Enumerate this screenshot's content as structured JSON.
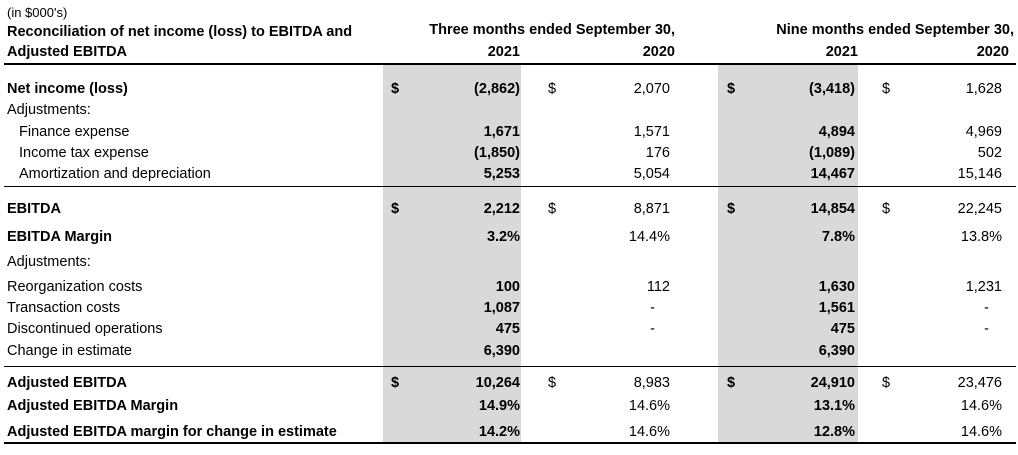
{
  "units_note": "(in $000's)",
  "header": {
    "title_line1": "Reconciliation of net income (loss) to EBITDA and",
    "title_line2": "Adjusted EBITDA",
    "three_months": "Three months ended September 30,",
    "nine_months": "Nine months ended September 30,",
    "years": [
      "2021",
      "2020",
      "2021",
      "2020"
    ]
  },
  "rows": [
    {
      "label": "Net income (loss)",
      "bold": true,
      "cur": true,
      "v": [
        "(2,862)",
        "2,070",
        "(3,418)",
        "1,628"
      ]
    },
    {
      "label": "Adjustments:",
      "bold": false,
      "cur": false,
      "v": [
        "",
        "",
        "",
        ""
      ]
    },
    {
      "label": "Finance expense",
      "bold": false,
      "indent": true,
      "cur": false,
      "v": [
        "1,671",
        "1,571",
        "4,894",
        "4,969"
      ]
    },
    {
      "label": "Income tax expense",
      "bold": false,
      "indent": true,
      "cur": false,
      "v": [
        "(1,850)",
        "176",
        "(1,089)",
        "502"
      ]
    },
    {
      "label": "Amortization and depreciation",
      "bold": false,
      "indent": true,
      "cur": false,
      "v": [
        "5,253",
        "5,054",
        "14,467",
        "15,146"
      ]
    },
    {
      "label": "EBITDA",
      "bold": true,
      "cur": true,
      "v": [
        "2,212",
        "8,871",
        "14,854",
        "22,245"
      ]
    },
    {
      "label": "EBITDA Margin",
      "bold": true,
      "cur": false,
      "v": [
        "3.2%",
        "14.4%",
        "7.8%",
        "13.8%"
      ]
    },
    {
      "label": "Adjustments:",
      "bold": false,
      "cur": false,
      "v": [
        "",
        "",
        "",
        ""
      ]
    },
    {
      "label": "Reorganization costs",
      "bold": false,
      "cur": false,
      "v": [
        "100",
        "112",
        "1,630",
        "1,231"
      ]
    },
    {
      "label": "Transaction costs",
      "bold": false,
      "cur": false,
      "v": [
        "1,087",
        "-",
        "1,561",
        "-"
      ]
    },
    {
      "label": "Discontinued operations",
      "bold": false,
      "cur": false,
      "v": [
        "475",
        "-",
        "475",
        "-"
      ]
    },
    {
      "label": "Change in estimate",
      "bold": false,
      "cur": false,
      "v": [
        "6,390",
        "",
        "6,390",
        ""
      ]
    },
    {
      "label": "Adjusted EBITDA",
      "bold": true,
      "cur": true,
      "v": [
        "10,264",
        "8,983",
        "24,910",
        "23,476"
      ]
    },
    {
      "label": "Adjusted EBITDA Margin",
      "bold": true,
      "cur": false,
      "v": [
        "14.9%",
        "14.6%",
        "13.1%",
        "14.6%"
      ]
    },
    {
      "label": "Adjusted EBITDA margin for change in estimate",
      "bold": true,
      "cur": false,
      "v": [
        "14.2%",
        "14.6%",
        "12.8%",
        "14.6%"
      ]
    }
  ],
  "currency_symbol": "$",
  "colors": {
    "shade": "#d9d9d9",
    "text": "#000000"
  }
}
